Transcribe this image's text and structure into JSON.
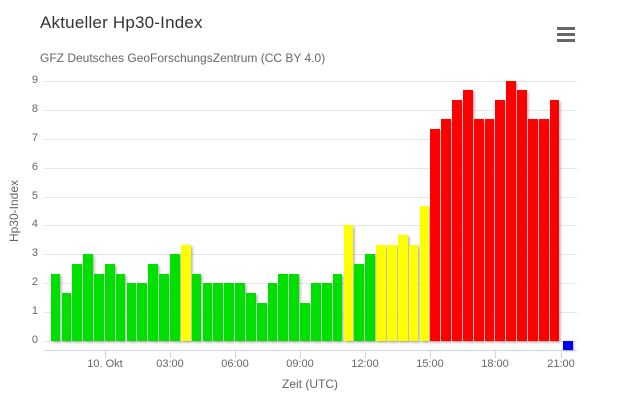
{
  "header": {
    "title": "Aktueller Hp30-Index",
    "subtitle": "GFZ Deutsches GeoForschungsZentrum (CC BY 4.0)"
  },
  "menu": {
    "icon": "hamburger-icon",
    "tooltip": "Chart context menu"
  },
  "chart_data": {
    "type": "bar",
    "title": "Aktueller Hp30-Index",
    "subtitle": "GFZ Deutsches GeoForschungsZentrum (CC BY 4.0)",
    "xlabel": "Zeit (UTC)",
    "ylabel": "Hp30-Index",
    "ylim": [
      0,
      9
    ],
    "y_ticks": [
      0,
      1,
      2,
      3,
      4,
      5,
      6,
      7,
      8,
      9
    ],
    "grid": "horizontal-only",
    "legend": "none",
    "bar_interval_minutes": 30,
    "x_ticks": [
      {
        "label": "10. Okt",
        "boundary": 5
      },
      {
        "label": "03:00",
        "boundary": 11
      },
      {
        "label": "06:00",
        "boundary": 17
      },
      {
        "label": "09:00",
        "boundary": 23
      },
      {
        "label": "12:00",
        "boundary": 29
      },
      {
        "label": "15:00",
        "boundary": 35
      },
      {
        "label": "18:00",
        "boundary": 41
      },
      {
        "label": "21:00",
        "boundary": 47
      }
    ],
    "values": [
      2.33,
      1.67,
      2.67,
      3.0,
      2.33,
      2.67,
      2.33,
      2.0,
      2.0,
      2.67,
      2.33,
      3.0,
      3.33,
      2.33,
      2.0,
      2.0,
      2.0,
      2.0,
      1.67,
      1.33,
      2.0,
      2.33,
      2.33,
      1.33,
      2.0,
      2.0,
      2.33,
      4.0,
      2.67,
      3.0,
      3.33,
      3.33,
      3.67,
      3.33,
      4.67,
      7.33,
      7.67,
      8.33,
      8.67,
      7.67,
      7.67,
      8.33,
      9.0,
      8.67,
      7.67,
      7.67,
      8.33
    ],
    "colors": [
      "green",
      "green",
      "green",
      "green",
      "green",
      "green",
      "green",
      "green",
      "green",
      "green",
      "green",
      "green",
      "yellow",
      "green",
      "green",
      "green",
      "green",
      "green",
      "green",
      "green",
      "green",
      "green",
      "green",
      "green",
      "green",
      "green",
      "green",
      "yellow",
      "green",
      "green",
      "yellow",
      "yellow",
      "yellow",
      "yellow",
      "yellow",
      "red",
      "red",
      "red",
      "red",
      "red",
      "red",
      "red",
      "red",
      "red",
      "red",
      "red",
      "red"
    ],
    "palette": {
      "green": "#00e000",
      "yellow": "#ffff00",
      "red": "#ff0000",
      "blue": "#0000ee"
    },
    "latest_marker": {
      "color": "blue"
    },
    "style_colors": {
      "gridline": "#e6e6e6",
      "axis_line": "#ccd6eb",
      "label_text": "#666666",
      "title_text": "#333333"
    }
  }
}
